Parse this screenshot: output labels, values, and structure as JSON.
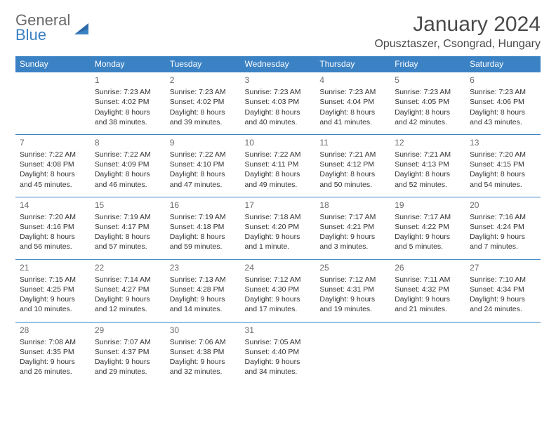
{
  "logo": {
    "general": "General",
    "blue": "Blue"
  },
  "title": "January 2024",
  "location": "Opusztaszer, Csongrad, Hungary",
  "colors": {
    "header_bg": "#3b82c4",
    "header_text": "#ffffff",
    "border": "#3b82c4",
    "text": "#333333",
    "daynum": "#6b6b6b",
    "logo_general": "#6b6b6b",
    "logo_blue": "#3b7fc4",
    "background": "#ffffff"
  },
  "typography": {
    "title_fontsize": 30,
    "location_fontsize": 16,
    "header_fontsize": 12,
    "cell_fontsize": 10.5,
    "daynum_fontsize": 12
  },
  "weekdays": [
    "Sunday",
    "Monday",
    "Tuesday",
    "Wednesday",
    "Thursday",
    "Friday",
    "Saturday"
  ],
  "weeks": [
    [
      null,
      {
        "n": "1",
        "sr": "Sunrise: 7:23 AM",
        "ss": "Sunset: 4:02 PM",
        "dl1": "Daylight: 8 hours",
        "dl2": "and 38 minutes."
      },
      {
        "n": "2",
        "sr": "Sunrise: 7:23 AM",
        "ss": "Sunset: 4:02 PM",
        "dl1": "Daylight: 8 hours",
        "dl2": "and 39 minutes."
      },
      {
        "n": "3",
        "sr": "Sunrise: 7:23 AM",
        "ss": "Sunset: 4:03 PM",
        "dl1": "Daylight: 8 hours",
        "dl2": "and 40 minutes."
      },
      {
        "n": "4",
        "sr": "Sunrise: 7:23 AM",
        "ss": "Sunset: 4:04 PM",
        "dl1": "Daylight: 8 hours",
        "dl2": "and 41 minutes."
      },
      {
        "n": "5",
        "sr": "Sunrise: 7:23 AM",
        "ss": "Sunset: 4:05 PM",
        "dl1": "Daylight: 8 hours",
        "dl2": "and 42 minutes."
      },
      {
        "n": "6",
        "sr": "Sunrise: 7:23 AM",
        "ss": "Sunset: 4:06 PM",
        "dl1": "Daylight: 8 hours",
        "dl2": "and 43 minutes."
      }
    ],
    [
      {
        "n": "7",
        "sr": "Sunrise: 7:22 AM",
        "ss": "Sunset: 4:08 PM",
        "dl1": "Daylight: 8 hours",
        "dl2": "and 45 minutes."
      },
      {
        "n": "8",
        "sr": "Sunrise: 7:22 AM",
        "ss": "Sunset: 4:09 PM",
        "dl1": "Daylight: 8 hours",
        "dl2": "and 46 minutes."
      },
      {
        "n": "9",
        "sr": "Sunrise: 7:22 AM",
        "ss": "Sunset: 4:10 PM",
        "dl1": "Daylight: 8 hours",
        "dl2": "and 47 minutes."
      },
      {
        "n": "10",
        "sr": "Sunrise: 7:22 AM",
        "ss": "Sunset: 4:11 PM",
        "dl1": "Daylight: 8 hours",
        "dl2": "and 49 minutes."
      },
      {
        "n": "11",
        "sr": "Sunrise: 7:21 AM",
        "ss": "Sunset: 4:12 PM",
        "dl1": "Daylight: 8 hours",
        "dl2": "and 50 minutes."
      },
      {
        "n": "12",
        "sr": "Sunrise: 7:21 AM",
        "ss": "Sunset: 4:13 PM",
        "dl1": "Daylight: 8 hours",
        "dl2": "and 52 minutes."
      },
      {
        "n": "13",
        "sr": "Sunrise: 7:20 AM",
        "ss": "Sunset: 4:15 PM",
        "dl1": "Daylight: 8 hours",
        "dl2": "and 54 minutes."
      }
    ],
    [
      {
        "n": "14",
        "sr": "Sunrise: 7:20 AM",
        "ss": "Sunset: 4:16 PM",
        "dl1": "Daylight: 8 hours",
        "dl2": "and 56 minutes."
      },
      {
        "n": "15",
        "sr": "Sunrise: 7:19 AM",
        "ss": "Sunset: 4:17 PM",
        "dl1": "Daylight: 8 hours",
        "dl2": "and 57 minutes."
      },
      {
        "n": "16",
        "sr": "Sunrise: 7:19 AM",
        "ss": "Sunset: 4:18 PM",
        "dl1": "Daylight: 8 hours",
        "dl2": "and 59 minutes."
      },
      {
        "n": "17",
        "sr": "Sunrise: 7:18 AM",
        "ss": "Sunset: 4:20 PM",
        "dl1": "Daylight: 9 hours",
        "dl2": "and 1 minute."
      },
      {
        "n": "18",
        "sr": "Sunrise: 7:17 AM",
        "ss": "Sunset: 4:21 PM",
        "dl1": "Daylight: 9 hours",
        "dl2": "and 3 minutes."
      },
      {
        "n": "19",
        "sr": "Sunrise: 7:17 AM",
        "ss": "Sunset: 4:22 PM",
        "dl1": "Daylight: 9 hours",
        "dl2": "and 5 minutes."
      },
      {
        "n": "20",
        "sr": "Sunrise: 7:16 AM",
        "ss": "Sunset: 4:24 PM",
        "dl1": "Daylight: 9 hours",
        "dl2": "and 7 minutes."
      }
    ],
    [
      {
        "n": "21",
        "sr": "Sunrise: 7:15 AM",
        "ss": "Sunset: 4:25 PM",
        "dl1": "Daylight: 9 hours",
        "dl2": "and 10 minutes."
      },
      {
        "n": "22",
        "sr": "Sunrise: 7:14 AM",
        "ss": "Sunset: 4:27 PM",
        "dl1": "Daylight: 9 hours",
        "dl2": "and 12 minutes."
      },
      {
        "n": "23",
        "sr": "Sunrise: 7:13 AM",
        "ss": "Sunset: 4:28 PM",
        "dl1": "Daylight: 9 hours",
        "dl2": "and 14 minutes."
      },
      {
        "n": "24",
        "sr": "Sunrise: 7:12 AM",
        "ss": "Sunset: 4:30 PM",
        "dl1": "Daylight: 9 hours",
        "dl2": "and 17 minutes."
      },
      {
        "n": "25",
        "sr": "Sunrise: 7:12 AM",
        "ss": "Sunset: 4:31 PM",
        "dl1": "Daylight: 9 hours",
        "dl2": "and 19 minutes."
      },
      {
        "n": "26",
        "sr": "Sunrise: 7:11 AM",
        "ss": "Sunset: 4:32 PM",
        "dl1": "Daylight: 9 hours",
        "dl2": "and 21 minutes."
      },
      {
        "n": "27",
        "sr": "Sunrise: 7:10 AM",
        "ss": "Sunset: 4:34 PM",
        "dl1": "Daylight: 9 hours",
        "dl2": "and 24 minutes."
      }
    ],
    [
      {
        "n": "28",
        "sr": "Sunrise: 7:08 AM",
        "ss": "Sunset: 4:35 PM",
        "dl1": "Daylight: 9 hours",
        "dl2": "and 26 minutes."
      },
      {
        "n": "29",
        "sr": "Sunrise: 7:07 AM",
        "ss": "Sunset: 4:37 PM",
        "dl1": "Daylight: 9 hours",
        "dl2": "and 29 minutes."
      },
      {
        "n": "30",
        "sr": "Sunrise: 7:06 AM",
        "ss": "Sunset: 4:38 PM",
        "dl1": "Daylight: 9 hours",
        "dl2": "and 32 minutes."
      },
      {
        "n": "31",
        "sr": "Sunrise: 7:05 AM",
        "ss": "Sunset: 4:40 PM",
        "dl1": "Daylight: 9 hours",
        "dl2": "and 34 minutes."
      },
      null,
      null,
      null
    ]
  ]
}
